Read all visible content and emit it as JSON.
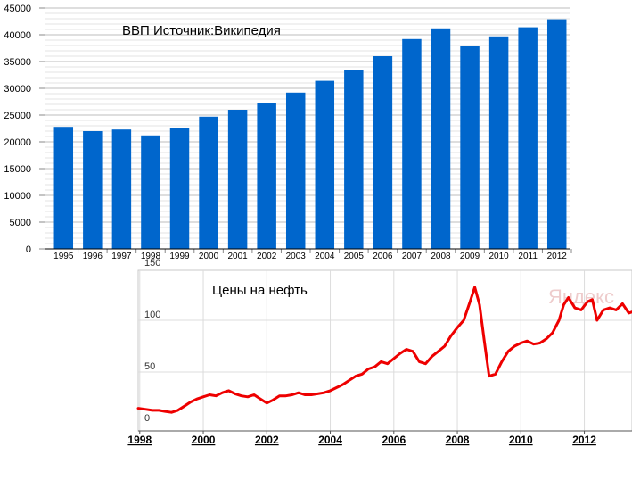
{
  "chart_data": [
    {
      "type": "bar",
      "title": "ВВП  Источник:Википедия",
      "xlabel": "",
      "ylabel": "",
      "ylim": [
        0,
        45000
      ],
      "yticks": [
        0,
        5000,
        10000,
        15000,
        20000,
        25000,
        30000,
        35000,
        40000,
        45000
      ],
      "grid": true,
      "color": "#0066cc",
      "categories": [
        "1995",
        "1996",
        "1997",
        "1998",
        "1999",
        "2000",
        "2001",
        "2002",
        "2003",
        "2004",
        "2005",
        "2006",
        "2007",
        "2008",
        "2009",
        "2010",
        "2011",
        "2012"
      ],
      "values": [
        22800,
        22000,
        22300,
        21200,
        22500,
        24700,
        26000,
        27200,
        29200,
        31400,
        33400,
        36000,
        39200,
        41200,
        38000,
        39700,
        41400,
        42900
      ]
    },
    {
      "type": "line",
      "title": "Цены на нефть",
      "xlabel": "",
      "ylabel": "",
      "ylim": [
        0,
        150
      ],
      "yticks": [
        0,
        50,
        100,
        150
      ],
      "xlim": [
        1997.95,
        2013.5
      ],
      "xticks": [
        "1998",
        "2000",
        "2002",
        "2004",
        "2006",
        "2008",
        "2010",
        "2012"
      ],
      "grid": true,
      "color": "#ee0000",
      "watermark": "Яндекс",
      "series": [
        {
          "x": [
            1997.95,
            1998.2,
            1998.4,
            1998.6,
            1998.8,
            1999.0,
            1999.2,
            1999.4,
            1999.6,
            1999.8,
            2000.0,
            2000.2,
            2000.4,
            2000.6,
            2000.8,
            2001.0,
            2001.2,
            2001.4,
            2001.6,
            2001.8,
            2002.0,
            2002.2,
            2002.4,
            2002.6,
            2002.8,
            2003.0,
            2003.2,
            2003.4,
            2003.6,
            2003.8,
            2004.0,
            2004.2,
            2004.4,
            2004.6,
            2004.8,
            2005.0,
            2005.2,
            2005.4,
            2005.6,
            2005.8,
            2006.0,
            2006.2,
            2006.4,
            2006.6,
            2006.8,
            2007.0,
            2007.2,
            2007.4,
            2007.6,
            2007.8,
            2008.0,
            2008.2,
            2008.4,
            2008.55,
            2008.7,
            2008.85,
            2009.0,
            2009.2,
            2009.4,
            2009.6,
            2009.8,
            2010.0,
            2010.2,
            2010.4,
            2010.6,
            2010.8,
            2011.0,
            2011.2,
            2011.35,
            2011.5,
            2011.7,
            2011.9,
            2012.1,
            2012.25,
            2012.4,
            2012.6,
            2012.8,
            2013.0,
            2013.2,
            2013.4,
            2013.5
          ],
          "y": [
            15,
            14,
            13,
            13,
            12,
            11,
            13,
            17,
            21,
            24,
            26,
            28,
            27,
            30,
            32,
            29,
            27,
            26,
            28,
            24,
            20,
            23,
            27,
            27,
            28,
            30,
            28,
            28,
            29,
            30,
            32,
            35,
            38,
            42,
            46,
            48,
            53,
            55,
            60,
            58,
            63,
            68,
            72,
            70,
            60,
            58,
            65,
            70,
            75,
            85,
            93,
            100,
            118,
            132,
            115,
            80,
            46,
            48,
            60,
            70,
            75,
            78,
            80,
            77,
            78,
            82,
            88,
            100,
            115,
            122,
            112,
            110,
            118,
            120,
            100,
            110,
            112,
            110,
            116,
            107,
            108
          ]
        }
      ]
    }
  ]
}
